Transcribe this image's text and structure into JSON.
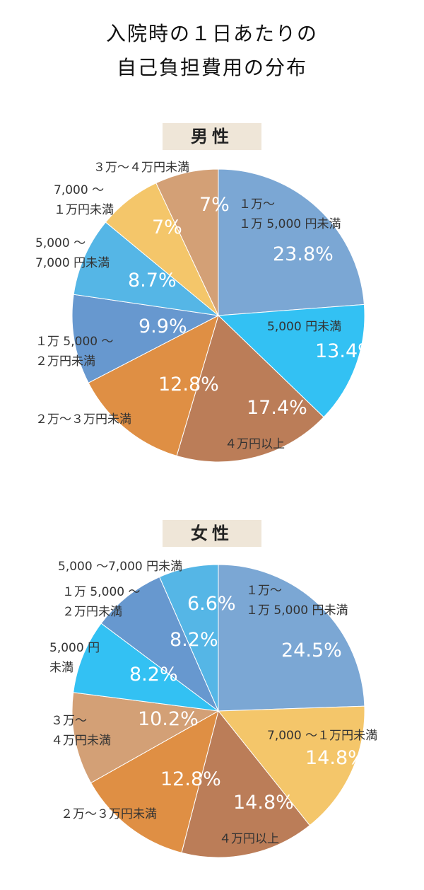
{
  "title": {
    "line1": "入院時の１日あたりの",
    "line2": "自己負担費用の分布"
  },
  "chart_data": [
    {
      "type": "pie",
      "title": "男性",
      "slices": [
        {
          "label": [
            "１万〜",
            "１万 5,000 円未満"
          ],
          "value": 23.8,
          "value_label": "23.8%",
          "color": "#7ba7d4"
        },
        {
          "label": [
            "5,000 円未満"
          ],
          "value": 13.4,
          "value_label": "13.4%",
          "color": "#33c1f3"
        },
        {
          "label": [
            "４万円以上"
          ],
          "value": 17.4,
          "value_label": "17.4%",
          "color": "#bb7d58"
        },
        {
          "label": [
            "２万〜３万円未満"
          ],
          "value": 12.8,
          "value_label": "12.8%",
          "color": "#df8f44"
        },
        {
          "label": [
            "１万 5,000 〜",
            "２万円未満"
          ],
          "value": 9.9,
          "value_label": "9.9%",
          "color": "#6798cf"
        },
        {
          "label": [
            "5,000 〜",
            "7,000 円未満"
          ],
          "value": 8.7,
          "value_label": "8.7%",
          "color": "#55b6e6"
        },
        {
          "label": [
            "7,000 〜",
            "１万円未満"
          ],
          "value": 7.0,
          "value_label": "7%",
          "color": "#f4c66a"
        },
        {
          "label": [
            "３万〜４万円未満"
          ],
          "value": 7.0,
          "value_label": "7%",
          "color": "#d3a076"
        }
      ]
    },
    {
      "type": "pie",
      "title": "女性",
      "slices": [
        {
          "label": [
            "１万〜",
            "１万 5,000 円未満"
          ],
          "value": 24.5,
          "value_label": "24.5%",
          "color": "#7ba7d4"
        },
        {
          "label": [
            "7,000 〜１万円未満"
          ],
          "value": 14.8,
          "value_label": "14.8%",
          "color": "#f4c66a"
        },
        {
          "label": [
            "４万円以上"
          ],
          "value": 14.8,
          "value_label": "14.8%",
          "color": "#bb7d58"
        },
        {
          "label": [
            "２万〜３万円未満"
          ],
          "value": 12.8,
          "value_label": "12.8%",
          "color": "#df8f44"
        },
        {
          "label": [
            "３万〜",
            "４万円未満"
          ],
          "value": 10.2,
          "value_label": "10.2%",
          "color": "#d3a076"
        },
        {
          "label": [
            "5,000 円",
            "未満"
          ],
          "value": 8.2,
          "value_label": "8.2%",
          "color": "#33c1f3"
        },
        {
          "label": [
            "１万 5,000 〜",
            "２万円未満"
          ],
          "value": 8.2,
          "value_label": "8.2%",
          "color": "#6798cf"
        },
        {
          "label": [
            "5,000 〜7,000 円未満"
          ],
          "value": 6.6,
          "value_label": "6.6%",
          "color": "#55b6e6"
        }
      ]
    }
  ]
}
